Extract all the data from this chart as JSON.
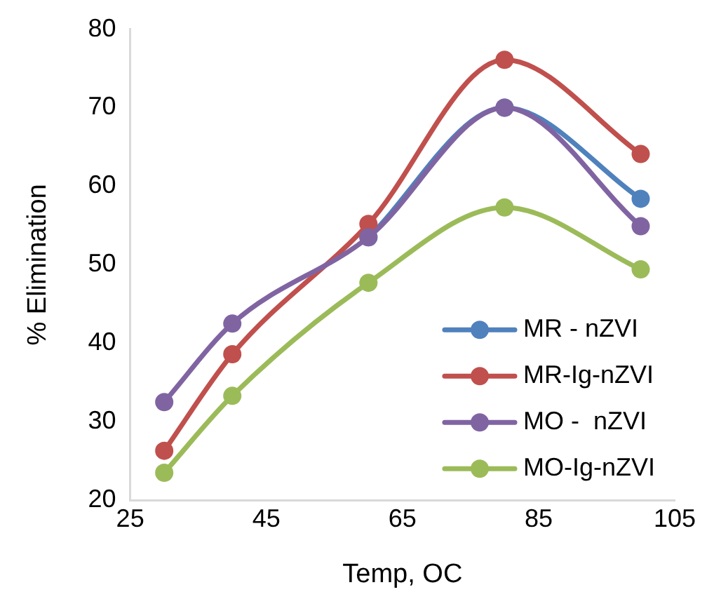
{
  "chart_data": {
    "type": "line",
    "xlabel": "Temp, OC",
    "ylabel": "% Elimination",
    "x": [
      30,
      40,
      60,
      80,
      100
    ],
    "xlim": [
      25,
      105
    ],
    "xticks": [
      25,
      45,
      65,
      85,
      105
    ],
    "ylim": [
      20,
      80
    ],
    "yticks": [
      20,
      30,
      40,
      50,
      60,
      70,
      80
    ],
    "grid": false,
    "legend": "bottom right",
    "marker": "circle",
    "line_style": "solid",
    "series": [
      {
        "name": "MR - nZVI",
        "color": "#4f81bd",
        "values": [
          null,
          null,
          53.5,
          70,
          58.4
        ]
      },
      {
        "name": "MR-Ig-nZVI",
        "color": "#c0504d",
        "values": [
          26.3,
          38.6,
          55.2,
          76.1,
          64.1
        ]
      },
      {
        "name": "MO -  nZVI",
        "color": "#8064a2",
        "values": [
          32.5,
          42.5,
          53.5,
          70,
          54.9
        ]
      },
      {
        "name": "MO-Ig-nZVI",
        "color": "#9bbb59",
        "values": [
          23.5,
          33.3,
          47.7,
          57.3,
          49.4
        ]
      }
    ]
  }
}
